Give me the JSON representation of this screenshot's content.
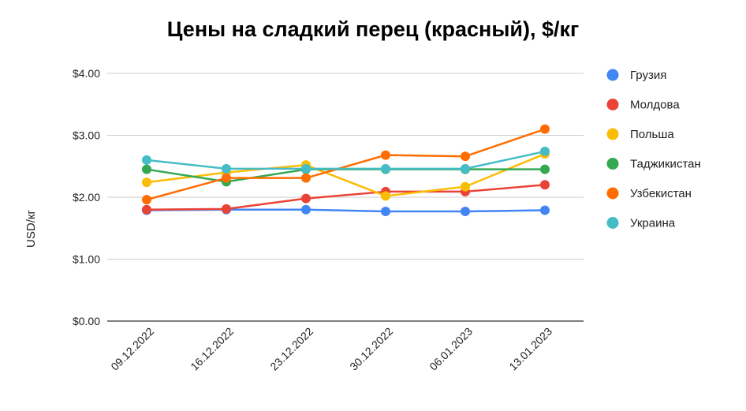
{
  "chart_data": {
    "type": "line",
    "title": "Цены на сладкий перец (красный), $/кг",
    "xlabel": "",
    "ylabel": "USD/кг",
    "categories": [
      "09.12.2022",
      "16.12.2022",
      "23.12.2022",
      "30.12.2022",
      "06.01.2023",
      "13.01.2023"
    ],
    "ylim": [
      0,
      4
    ],
    "yticks": [
      0,
      1,
      2,
      3,
      4
    ],
    "ytick_labels": [
      "$0.00",
      "$1.00",
      "$2.00",
      "$3.00",
      "$4.00"
    ],
    "grid": true,
    "legend_position": "right",
    "series": [
      {
        "name": "Грузия",
        "color": "#4285F4",
        "values": [
          1.79,
          1.8,
          1.8,
          1.77,
          1.77,
          1.79
        ]
      },
      {
        "name": "Молдова",
        "color": "#EA4335",
        "values": [
          1.8,
          1.81,
          1.98,
          2.09,
          2.09,
          2.2
        ]
      },
      {
        "name": "Польша",
        "color": "#FBBC04",
        "values": [
          2.24,
          2.4,
          2.52,
          2.02,
          2.17,
          2.7
        ]
      },
      {
        "name": "Таджикистан",
        "color": "#34A853",
        "values": [
          2.45,
          2.25,
          2.45,
          2.45,
          2.45,
          2.45
        ]
      },
      {
        "name": "Узбекистан",
        "color": "#FF6D01",
        "values": [
          1.96,
          2.31,
          2.31,
          2.68,
          2.66,
          3.1
        ]
      },
      {
        "name": "Украина",
        "color": "#46BDC6",
        "values": [
          2.6,
          2.46,
          2.46,
          2.46,
          2.46,
          2.74
        ]
      }
    ]
  }
}
